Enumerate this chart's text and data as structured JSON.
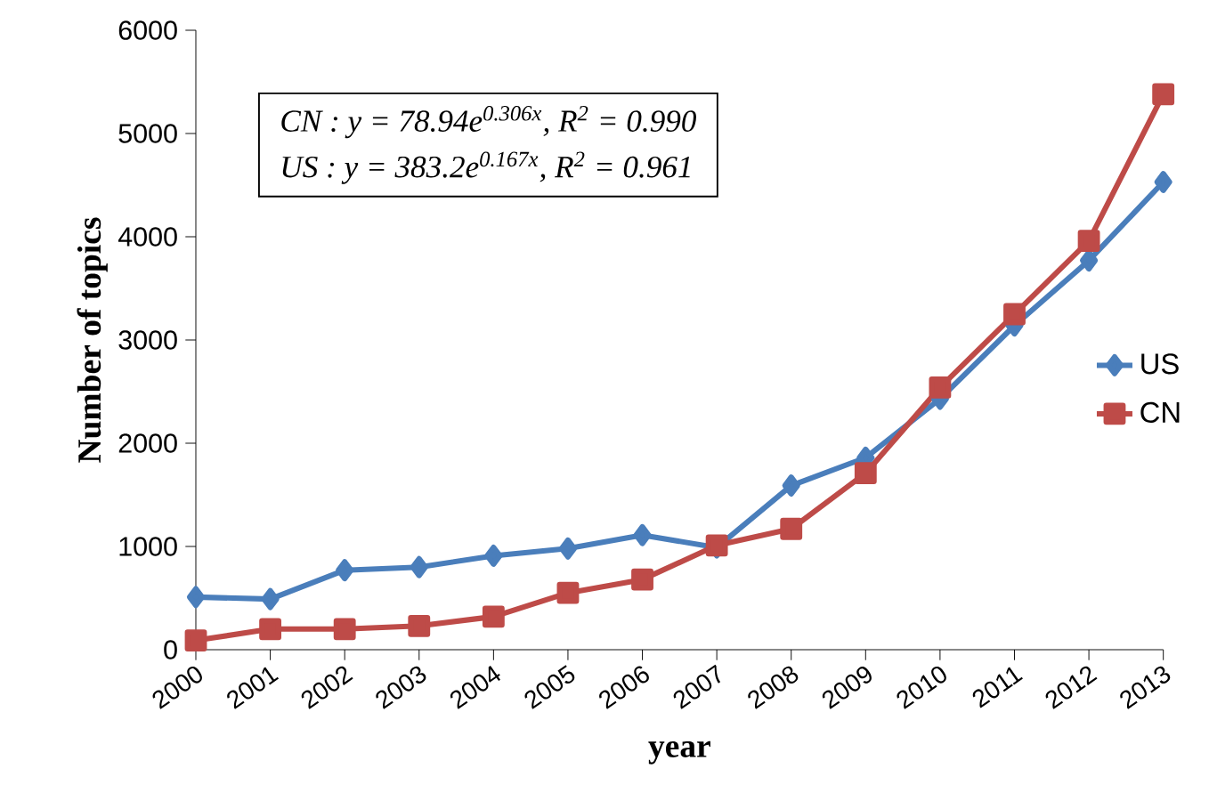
{
  "chart_data": {
    "type": "line",
    "categories": [
      "2000",
      "2001",
      "2002",
      "2003",
      "2004",
      "2005",
      "2006",
      "2007",
      "2008",
      "2009",
      "2010",
      "2011",
      "2012",
      "2013"
    ],
    "series": [
      {
        "name": "US",
        "color": "#4a7ebb",
        "marker": "diamond",
        "values": [
          510,
          490,
          770,
          800,
          910,
          980,
          1110,
          990,
          1590,
          1860,
          2430,
          3140,
          3770,
          4530
        ]
      },
      {
        "name": "CN",
        "color": "#be4b48",
        "marker": "square",
        "values": [
          90,
          200,
          200,
          230,
          320,
          550,
          680,
          1010,
          1170,
          1710,
          2540,
          3250,
          3960,
          5380
        ]
      }
    ],
    "xlabel": "year",
    "ylabel": "Number of topics",
    "ylim": [
      0,
      6000
    ],
    "yticks": [
      0,
      1000,
      2000,
      3000,
      4000,
      5000,
      6000
    ],
    "annotations": [
      "CN : y = 78.94e$^{0.306x}$, R$^{2}$ = 0.990",
      "US : y = 383.2e$^{0.167x}$, R$^{2}$ = 0.961"
    ],
    "legend": "right",
    "grid": false,
    "line_style": "solid"
  }
}
